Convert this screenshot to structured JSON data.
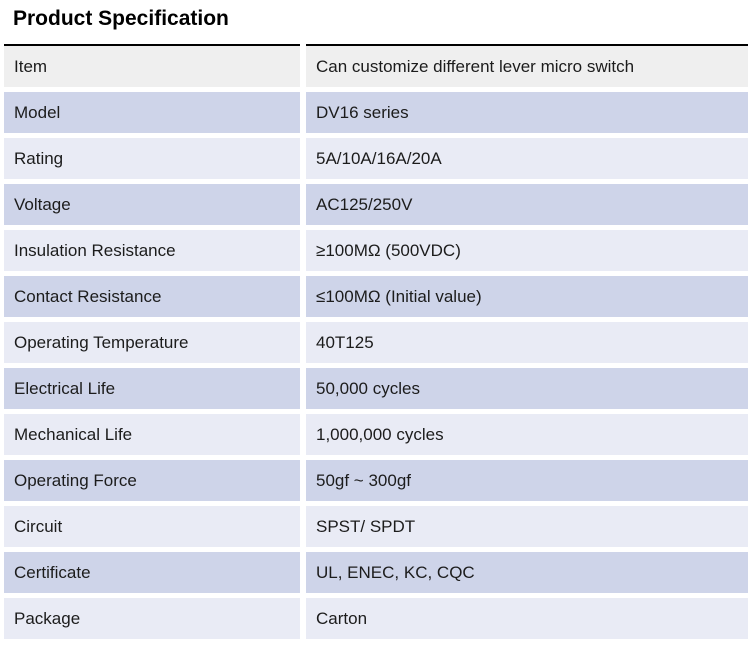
{
  "page": {
    "title": "Product Specification"
  },
  "table": {
    "columns": [
      "label",
      "value"
    ],
    "rows": [
      {
        "label": "Item",
        "value": "Can customize different lever micro switch"
      },
      {
        "label": "Model",
        "value": "DV16 series"
      },
      {
        "label": "Rating",
        "value": "5A/10A/16A/20A"
      },
      {
        "label": "Voltage",
        "value": "AC125/250V"
      },
      {
        "label": "Insulation Resistance",
        "value": "≥100MΩ (500VDC)"
      },
      {
        "label": "Contact Resistance",
        "value": "≤100MΩ (Initial value)"
      },
      {
        "label": "Operating Temperature",
        "value": "40T125"
      },
      {
        "label": "Electrical Life",
        "value": "50,000 cycles"
      },
      {
        "label": "Mechanical Life",
        "value": "1,000,000 cycles"
      },
      {
        "label": "Operating Force",
        "value": "50gf ~ 300gf"
      },
      {
        "label": "Circuit",
        "value": "SPST/ SPDT"
      },
      {
        "label": "Certificate",
        "value": "UL, ENEC, KC, CQC"
      },
      {
        "label": "Package",
        "value": "Carton"
      }
    ],
    "colors": {
      "band_gray": "#efefef",
      "band_dark": "#ced4e9",
      "band_light": "#e9ebf5",
      "top_border": "#000000"
    }
  }
}
